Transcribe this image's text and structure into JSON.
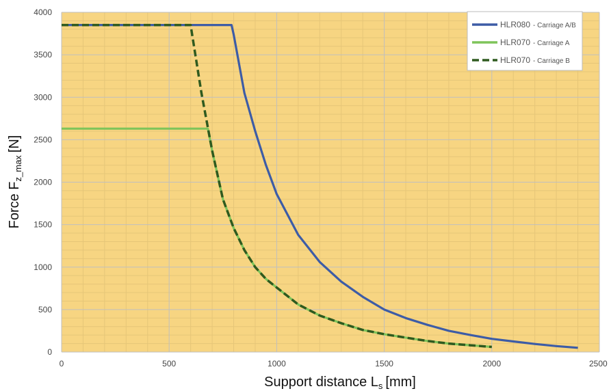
{
  "chart_data": {
    "type": "line",
    "xlabel": "Support distance L",
    "xlabel_sub": "s",
    "xlabel_unit": "[mm]",
    "ylabel": "Force F",
    "ylabel_sub": "z_max",
    "ylabel_unit": "[N]",
    "xlim": [
      0,
      2500
    ],
    "ylim": [
      0,
      4000
    ],
    "xticks": [
      0,
      500,
      1000,
      1500,
      2000,
      2500
    ],
    "yticks": [
      0,
      500,
      1000,
      1500,
      2000,
      2500,
      3000,
      3500,
      4000
    ],
    "grid": true,
    "minor_grid": true,
    "legend_position": "top-right",
    "colors": {
      "plot_background": "#f7d582",
      "major_grid": "#bfbfbf",
      "minor_grid": "#e6c678"
    },
    "series": [
      {
        "name": "HLR080",
        "note": "- Carriage A/B",
        "color": "#3d5ca6",
        "dash": "solid",
        "x": [
          0,
          790,
          800,
          850,
          900,
          950,
          1000,
          1100,
          1200,
          1300,
          1400,
          1500,
          1600,
          1700,
          1800,
          1900,
          2000,
          2100,
          2200,
          2300,
          2400
        ],
        "y": [
          3850,
          3850,
          3740,
          3050,
          2600,
          2200,
          1860,
          1380,
          1060,
          830,
          650,
          500,
          400,
          320,
          250,
          200,
          155,
          125,
          95,
          70,
          50
        ]
      },
      {
        "name": "HLR070",
        "note": "- Carriage A",
        "color": "#7ec45a",
        "dash": "solid",
        "x": [
          0,
          680,
          700,
          750,
          800,
          850,
          900,
          950,
          1000,
          1100,
          1200,
          1300,
          1400,
          1500,
          1600,
          1700,
          1800,
          1900,
          2000
        ],
        "y": [
          2630,
          2630,
          2370,
          1800,
          1460,
          1200,
          1000,
          860,
          760,
          560,
          430,
          340,
          260,
          210,
          170,
          130,
          100,
          80,
          60
        ]
      },
      {
        "name": "HLR070",
        "note": "- Carriage B",
        "color": "#2f5a1f",
        "dash": "dashed",
        "x": [
          0,
          600,
          650,
          700,
          750,
          800,
          850,
          900,
          950,
          1000,
          1100,
          1200,
          1300,
          1400,
          1500,
          1600,
          1700,
          1800,
          1900,
          2000
        ],
        "y": [
          3850,
          3850,
          3050,
          2370,
          1800,
          1460,
          1200,
          1000,
          860,
          760,
          560,
          430,
          340,
          260,
          210,
          170,
          130,
          100,
          80,
          60
        ]
      }
    ]
  }
}
